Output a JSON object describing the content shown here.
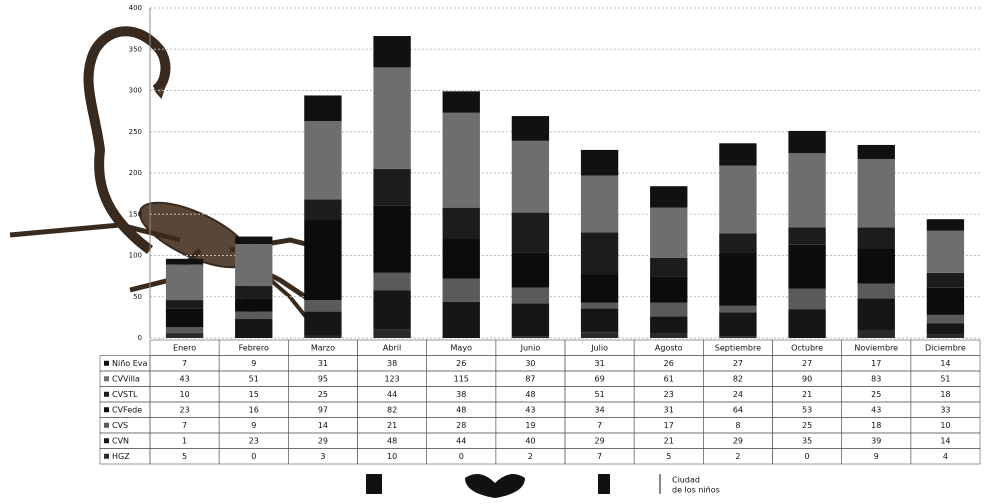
{
  "chart_data": {
    "type": "stacked-bar",
    "categories": [
      "Enero",
      "Febrero",
      "Marzo",
      "Abril",
      "Mayo",
      "Junio",
      "Julio",
      "Agosto",
      "Septiembre",
      "Octubre",
      "Noviembre",
      "Diciembre"
    ],
    "series": [
      {
        "name": "Niño Eva",
        "color": "#111111",
        "values": [
          7,
          9,
          31,
          38,
          26,
          30,
          31,
          26,
          27,
          27,
          17,
          14
        ]
      },
      {
        "name": "CVVilla",
        "color": "#6e6e6e",
        "values": [
          43,
          51,
          95,
          123,
          115,
          87,
          69,
          61,
          82,
          90,
          83,
          51
        ]
      },
      {
        "name": "CVSTL",
        "color": "#1c1c1c",
        "values": [
          10,
          15,
          25,
          44,
          38,
          48,
          51,
          23,
          24,
          21,
          25,
          18
        ]
      },
      {
        "name": "CVFede",
        "color": "#0c0c0c",
        "values": [
          23,
          16,
          97,
          82,
          48,
          43,
          34,
          31,
          64,
          53,
          43,
          33
        ]
      },
      {
        "name": "CVS",
        "color": "#5a5a5a",
        "values": [
          7,
          9,
          14,
          21,
          28,
          19,
          7,
          17,
          8,
          25,
          18,
          10
        ]
      },
      {
        "name": "CVN",
        "color": "#161616",
        "values": [
          1,
          23,
          29,
          48,
          44,
          40,
          29,
          21,
          29,
          35,
          39,
          14
        ]
      },
      {
        "name": "HGZ",
        "color": "#2a2a2a",
        "values": [
          5,
          0,
          3,
          10,
          0,
          2,
          7,
          5,
          2,
          0,
          9,
          4
        ]
      }
    ],
    "ylim": [
      0,
      400
    ],
    "yticks": [
      0,
      50,
      100,
      150,
      200,
      250,
      300,
      350,
      400
    ],
    "grid": true,
    "footer": [
      "Ciudad",
      "de los niños"
    ]
  }
}
